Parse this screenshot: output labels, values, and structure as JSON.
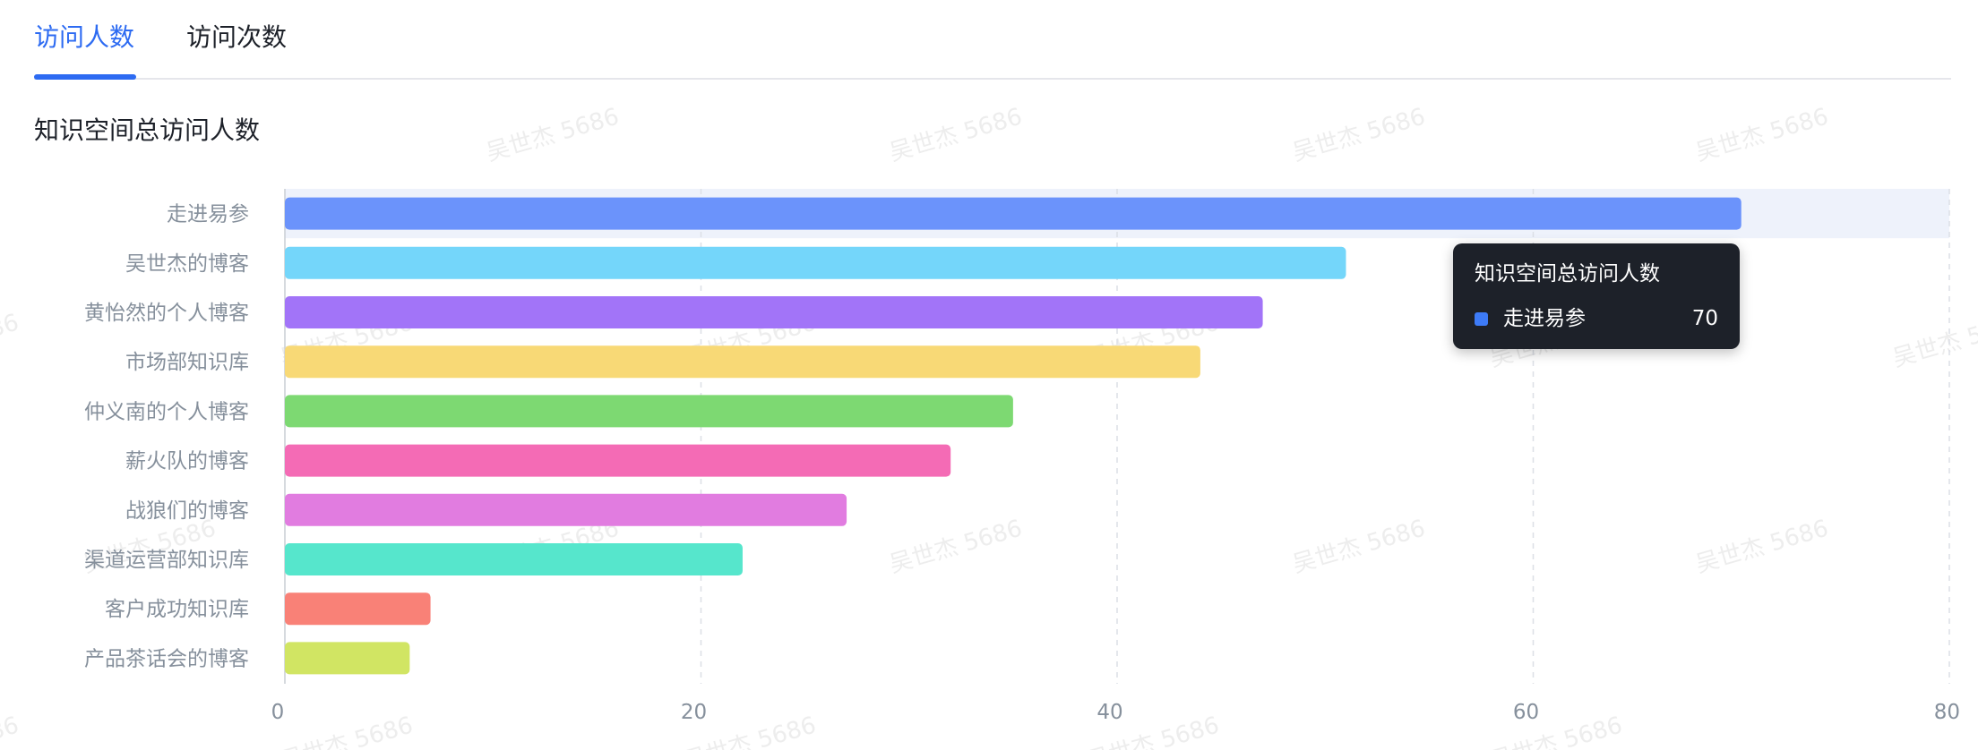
{
  "tabs": [
    {
      "label": "访问人数",
      "active": true
    },
    {
      "label": "访问次数",
      "active": false
    }
  ],
  "section_title": "知识空间总访问人数",
  "watermark_text": "吴世杰 5686",
  "colors": {
    "accent": "#2d6bf2",
    "highlight_band": "#eef2fb",
    "grid": "#dcdfe6",
    "tooltip_bg": "#1d2129"
  },
  "chart_data": {
    "type": "bar",
    "orientation": "horizontal",
    "title": "知识空间总访问人数",
    "xlabel": "",
    "ylabel": "",
    "categories": [
      "走进易参",
      "吴世杰的博客",
      "黄怡然的个人博客",
      "市场部知识库",
      "仲义南的个人博客",
      "薪火队的博客",
      "战狼们的博客",
      "渠道运营部知识库",
      "客户成功知识库",
      "产品茶话会的博客"
    ],
    "values": [
      70,
      51,
      47,
      44,
      35,
      32,
      27,
      22,
      7,
      6
    ],
    "bar_colors": [
      "#6b93fb",
      "#74d6fa",
      "#a274f8",
      "#f8d976",
      "#7dd972",
      "#f46bb5",
      "#e17ce0",
      "#56e6cc",
      "#f98177",
      "#d1e563"
    ],
    "xlim": [
      0,
      80
    ],
    "xticks": [
      0,
      20,
      40,
      60,
      80
    ],
    "grid": "vertical dashed",
    "highlighted_category": "走进易参",
    "tooltip": {
      "title": "知识空间总访问人数",
      "name": "走进易参",
      "value": "70",
      "color": "#3d7bf7"
    }
  }
}
